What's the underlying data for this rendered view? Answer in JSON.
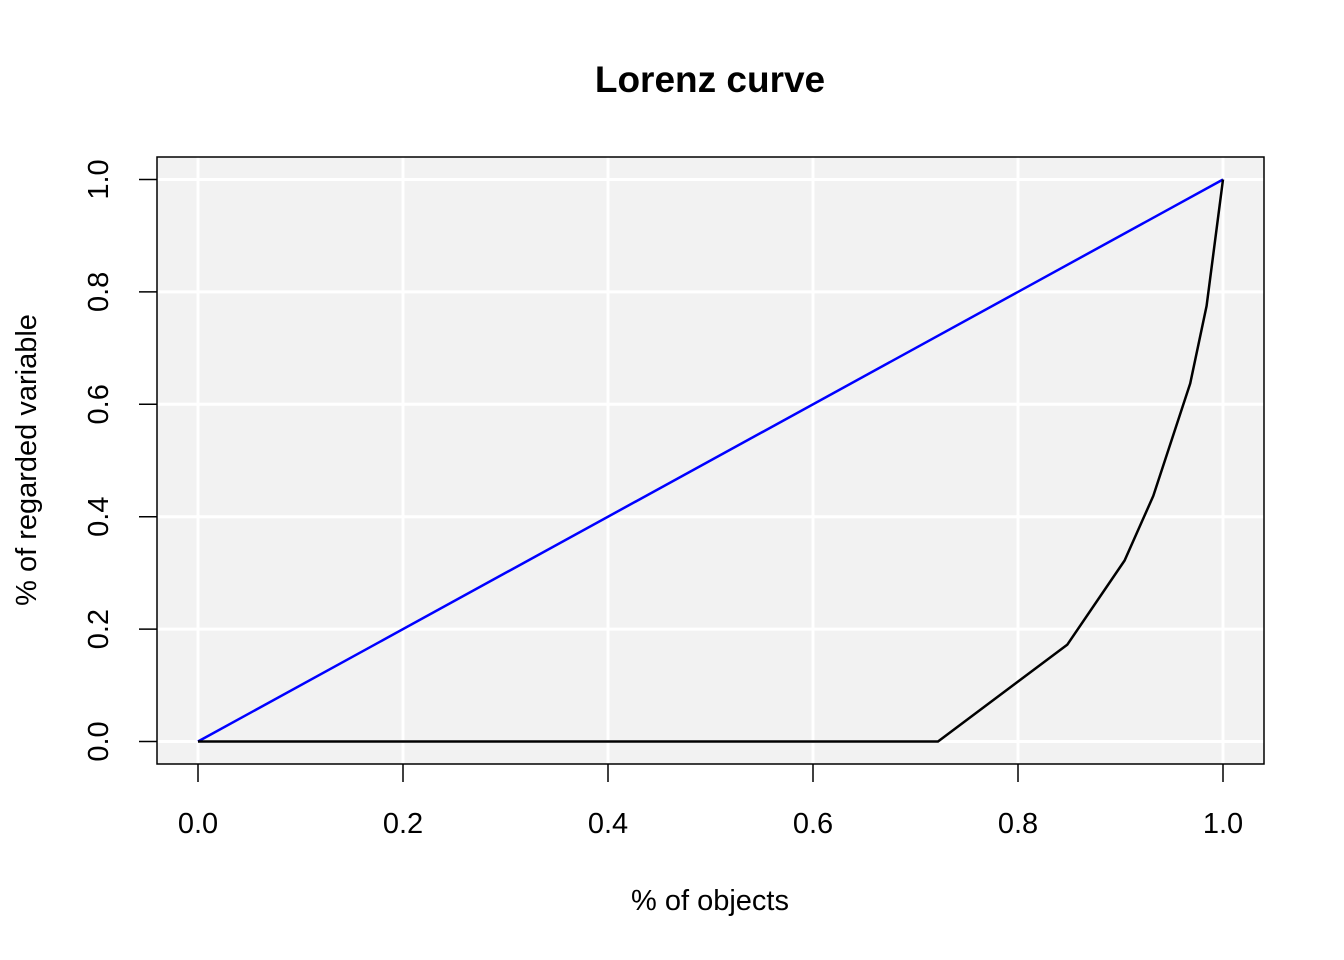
{
  "chart_data": {
    "type": "line",
    "title": "Lorenz curve",
    "xlabel": "% of objects",
    "ylabel": "% of regarded variable",
    "xlim": [
      -0.04,
      1.04
    ],
    "ylim": [
      -0.04,
      1.04
    ],
    "x_ticks": [
      "0.0",
      "0.2",
      "0.4",
      "0.6",
      "0.8",
      "1.0"
    ],
    "y_ticks": [
      "0.0",
      "0.2",
      "0.4",
      "0.6",
      "0.8",
      "1.0"
    ],
    "grid": true,
    "legend": "none",
    "colors": {
      "panel": "#f2f2f2",
      "grid": "#ffffff",
      "equality": "#0000ff",
      "lorenz": "#000000"
    },
    "series": [
      {
        "x": [
          0.0,
          1.0
        ],
        "y": [
          0.0,
          1.0
        ]
      },
      {
        "x": [
          0.0,
          0.722,
          0.848,
          0.904,
          0.932,
          0.968,
          0.984,
          1.0
        ],
        "y": [
          0.0,
          0.0,
          0.172,
          0.322,
          0.437,
          0.637,
          0.775,
          1.0
        ]
      }
    ]
  }
}
